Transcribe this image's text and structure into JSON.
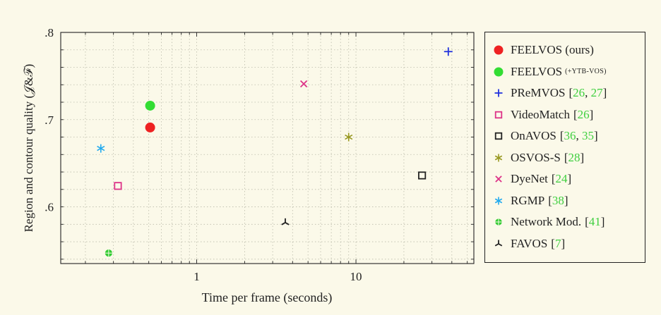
{
  "chart_data": {
    "type": "scatter",
    "xlabel": "Time per frame (seconds)",
    "ylabel": "Region and contour quality (𝒥&ℱ)",
    "x_scale": "log",
    "xlim": [
      0.14,
      55
    ],
    "ylim": [
      0.535,
      0.8
    ],
    "x_ticks": [
      {
        "value": 1,
        "label": "1"
      },
      {
        "value": 10,
        "label": "10"
      }
    ],
    "y_ticks": [
      {
        "value": 0.6,
        "label": ".6"
      },
      {
        "value": 0.7,
        "label": ".7"
      },
      {
        "value": 0.8,
        "label": ".8"
      }
    ],
    "grid": "dotted",
    "legend_position": "right",
    "series": [
      {
        "name": "FEELVOS (ours)",
        "marker": "filled-circle",
        "color": "#ee2222",
        "x": 0.51,
        "y": 0.691
      },
      {
        "name": "FEELVOS",
        "name_suffix": "(+YTB-VOS)",
        "marker": "filled-circle",
        "color": "#33dd33",
        "x": 0.51,
        "y": 0.716
      },
      {
        "name": "PReMVOS",
        "refs": [
          "26",
          "27"
        ],
        "marker": "plus",
        "color": "#2233dd",
        "x": 38,
        "y": 0.778
      },
      {
        "name": "VideoMatch",
        "refs": [
          "26"
        ],
        "marker": "square",
        "color": "#dd3388",
        "x": 0.32,
        "y": 0.624
      },
      {
        "name": "OnAVOS",
        "refs": [
          "36",
          "35"
        ],
        "marker": "square",
        "color": "#222222",
        "x": 26,
        "y": 0.636
      },
      {
        "name": "OSVOS-S",
        "refs": [
          "28"
        ],
        "marker": "asterisk",
        "color": "#999922",
        "x": 9,
        "y": 0.68
      },
      {
        "name": "DyeNet",
        "refs": [
          "24"
        ],
        "marker": "x",
        "color": "#dd3388",
        "x": 4.7,
        "y": 0.741
      },
      {
        "name": "RGMP",
        "refs": [
          "38"
        ],
        "marker": "asterisk",
        "color": "#22aaee",
        "x": 0.25,
        "y": 0.667
      },
      {
        "name": "Network Mod.",
        "refs": [
          "41"
        ],
        "marker": "oplus",
        "color": "#33cc33",
        "x": 0.28,
        "y": 0.547
      },
      {
        "name": "FAVOS",
        "refs": [
          "7"
        ],
        "marker": "tri",
        "color": "#222222",
        "x": 3.6,
        "y": 0.582
      }
    ]
  },
  "colors": {
    "background": "#fbf9e9",
    "axis": "#222222",
    "grid": "#bbbbaa",
    "ref": "#3fcf3f"
  }
}
